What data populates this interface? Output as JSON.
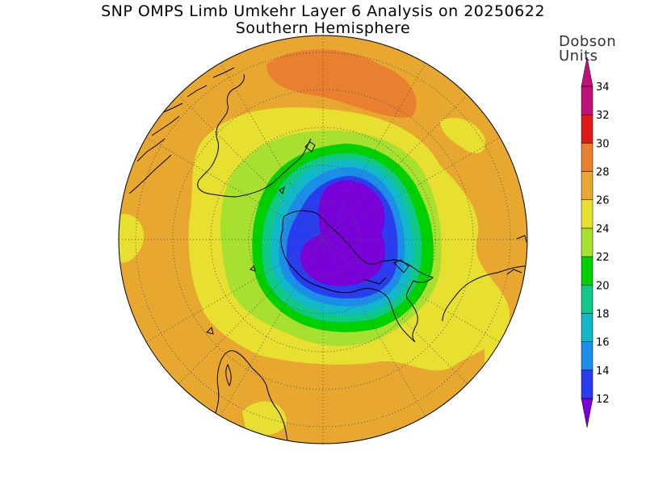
{
  "title": "SNP OMPS Limb Umkehr Layer 6 Analysis on 20250622",
  "subtitle": "Southern Hemisphere",
  "colorbar": {
    "unit_line1": "Dobson",
    "unit_line2": "Units",
    "tick_labels": [
      "12",
      "14",
      "16",
      "18",
      "20",
      "22",
      "24",
      "26",
      "28",
      "30",
      "32",
      "34"
    ],
    "colors": [
      "#7a00d8",
      "#2a3cf0",
      "#1a8ee8",
      "#10b8c8",
      "#10c888",
      "#00d000",
      "#a8e030",
      "#e8e030",
      "#e8a830",
      "#e88030",
      "#e01818",
      "#c0107a"
    ]
  },
  "map": {
    "projection": "polar stereographic",
    "hemisphere": "south",
    "ocean_color": "#e8a830"
  }
}
